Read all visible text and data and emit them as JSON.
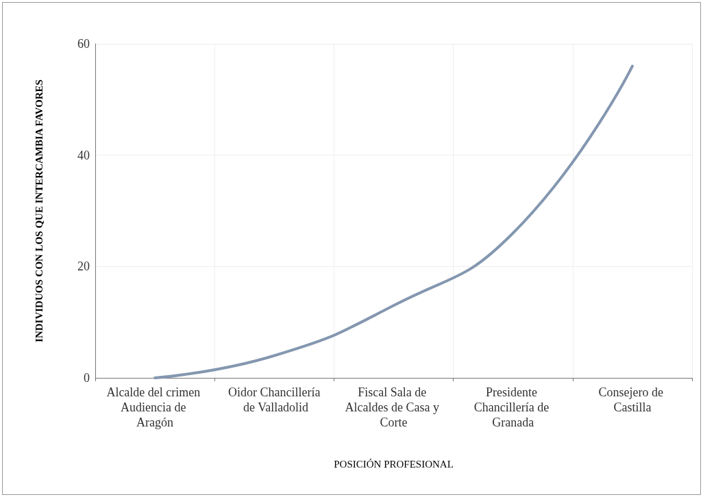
{
  "chart_data": {
    "type": "line",
    "xlabel": "POSICIÓN PROFESIONAL",
    "ylabel": "INDIVIDUOS CON LOS QUE INTERCAMBIA FAVORES",
    "categories": [
      "Alcalde del crimen Audiencia de Aragón",
      "Oidor Chancillería de Valladolid",
      "Fiscal Sala de Alcaldes de Casa y Corte",
      "Presidente Chancillería de Granada",
      "Consejero de Castilla"
    ],
    "series": [
      {
        "color": "#8497b0",
        "values": [
          0,
          4,
          13,
          26,
          56
        ]
      }
    ],
    "ylim": [
      0,
      60
    ],
    "yticks": [
      0,
      20,
      40,
      60
    ],
    "grid": true,
    "marker": "none",
    "line_style": "solid"
  }
}
